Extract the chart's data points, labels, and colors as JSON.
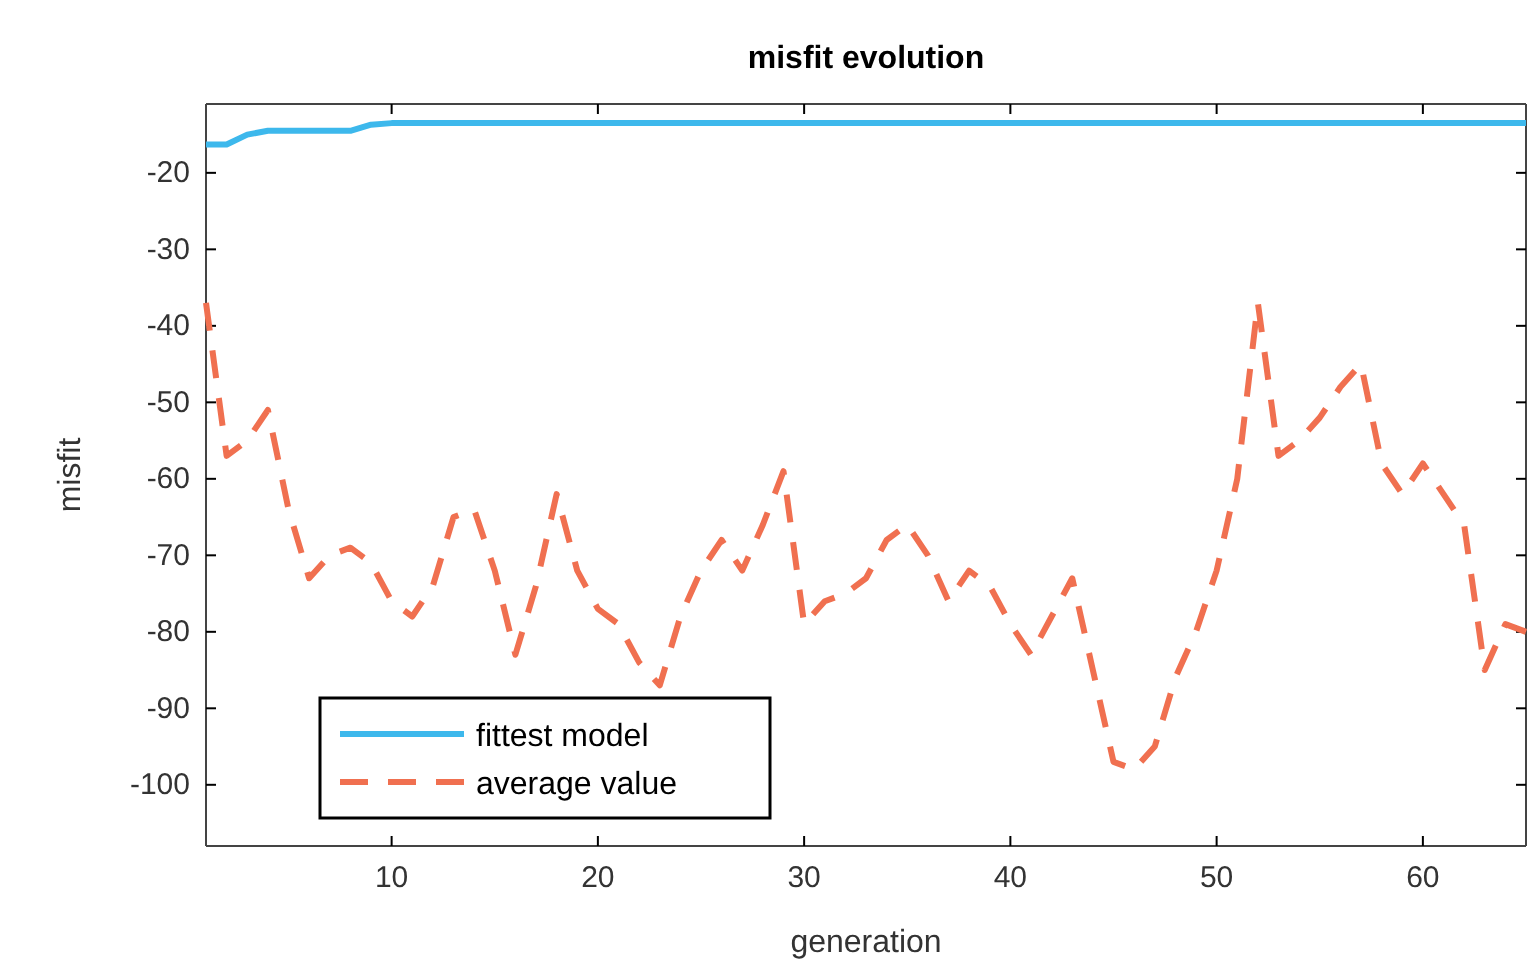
{
  "chart_data": {
    "type": "line",
    "title": "misfit evolution",
    "xlabel": "generation",
    "ylabel": "misfit",
    "x": [
      1,
      2,
      3,
      4,
      5,
      6,
      7,
      8,
      9,
      10,
      11,
      12,
      13,
      14,
      15,
      16,
      17,
      18,
      19,
      20,
      21,
      22,
      23,
      24,
      25,
      26,
      27,
      28,
      29,
      30,
      31,
      32,
      33,
      34,
      35,
      36,
      37,
      38,
      39,
      40,
      41,
      42,
      43,
      44,
      45,
      46,
      47,
      48,
      49,
      50,
      51,
      52,
      53,
      54,
      55,
      56,
      57,
      58,
      59,
      60,
      61,
      62,
      63,
      64,
      65
    ],
    "xlim": [
      1,
      65
    ],
    "xticks": [
      10,
      20,
      30,
      40,
      50,
      60
    ],
    "ylim": [
      -108,
      -11
    ],
    "yticks": [
      -100,
      -90,
      -80,
      -70,
      -60,
      -50,
      -40,
      -30,
      -20
    ],
    "grid": false,
    "legend": "bottom left",
    "marker": "none",
    "series": [
      {
        "name": "fittest model",
        "color": "#3db8ec",
        "line_style": "solid",
        "values": [
          -16.3,
          -16.3,
          -15,
          -14.5,
          -14.5,
          -14.5,
          -14.5,
          -14.5,
          -13.7,
          -13.5,
          -13.5,
          -13.5,
          -13.5,
          -13.5,
          -13.5,
          -13.5,
          -13.5,
          -13.5,
          -13.5,
          -13.5,
          -13.5,
          -13.5,
          -13.5,
          -13.5,
          -13.5,
          -13.5,
          -13.5,
          -13.5,
          -13.5,
          -13.5,
          -13.5,
          -13.5,
          -13.5,
          -13.5,
          -13.5,
          -13.5,
          -13.5,
          -13.5,
          -13.5,
          -13.5,
          -13.5,
          -13.5,
          -13.5,
          -13.5,
          -13.5,
          -13.5,
          -13.5,
          -13.5,
          -13.5,
          -13.5,
          -13.5,
          -13.5,
          -13.5,
          -13.5,
          -13.5,
          -13.5,
          -13.5,
          -13.5,
          -13.5,
          -13.5,
          -13.5,
          -13.5,
          -13.5,
          -13.5,
          -13.5
        ]
      },
      {
        "name": "average value",
        "color": "#f07050",
        "line_style": "dashed",
        "values": [
          -37,
          -57,
          -55,
          -51,
          -64,
          -73,
          -70,
          -69,
          -71,
          -76,
          -78,
          -74,
          -65,
          -64,
          -72,
          -83,
          -74,
          -62,
          -72,
          -77,
          -79,
          -84,
          -87,
          -78,
          -72,
          -68,
          -72,
          -66,
          -59,
          -79,
          -76,
          -75,
          -73,
          -68,
          -66,
          -70,
          -76,
          -72,
          -74,
          -79,
          -83,
          -78,
          -73,
          -85,
          -97,
          -98,
          -95,
          -86,
          -80,
          -72,
          -60,
          -37,
          -57,
          -55,
          -52,
          -48,
          -45,
          -58,
          -62,
          -58,
          -62,
          -66,
          -85,
          -79,
          -80
        ]
      }
    ]
  }
}
